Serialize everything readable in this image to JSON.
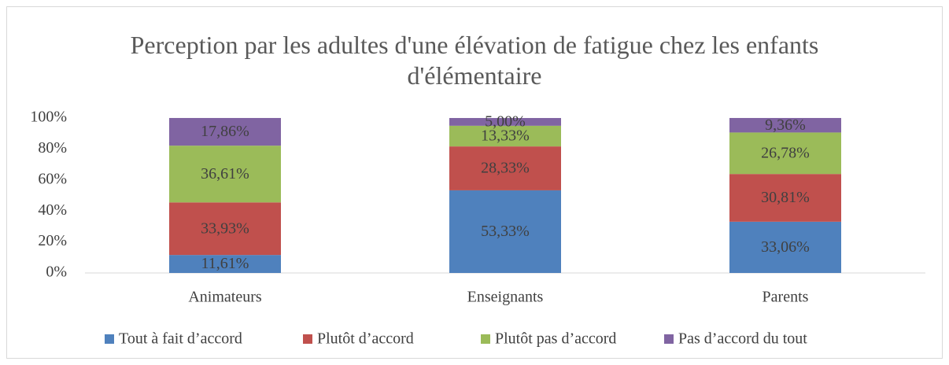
{
  "chart_data": {
    "type": "stacked_bar",
    "title": "Perception par les adultes d'une élévation de fatigue chez les enfants d'élémentaire",
    "categories": [
      "Animateurs",
      "Enseignants",
      "Parents"
    ],
    "series": [
      {
        "name": "Tout à fait d’accord",
        "color": "#4f81bd",
        "values": [
          11.61,
          53.33,
          33.06
        ],
        "value_labels": [
          "11,61%",
          "53,33%",
          "33,06%"
        ]
      },
      {
        "name": "Plutôt d’accord",
        "color": "#c0504d",
        "values": [
          33.93,
          28.33,
          30.81
        ],
        "value_labels": [
          "33,93%",
          "28,33%",
          "30,81%"
        ]
      },
      {
        "name": "Plutôt pas d’accord",
        "color": "#9bbb59",
        "values": [
          36.61,
          13.33,
          26.78
        ],
        "value_labels": [
          "36,61%",
          "13,33%",
          "26,78%"
        ]
      },
      {
        "name": "Pas d’accord du tout",
        "color": "#8064a2",
        "values": [
          17.86,
          5.0,
          9.36
        ],
        "value_labels": [
          "17,86%",
          "5,00%",
          "9,36%"
        ]
      }
    ],
    "ylim": [
      0,
      100
    ],
    "yticks": [
      {
        "value": 0,
        "label": "0%"
      },
      {
        "value": 20,
        "label": "20%"
      },
      {
        "value": 40,
        "label": "40%"
      },
      {
        "value": 60,
        "label": "60%"
      },
      {
        "value": 80,
        "label": "80%"
      },
      {
        "value": 100,
        "label": "100%"
      }
    ],
    "legend": "bottom"
  }
}
